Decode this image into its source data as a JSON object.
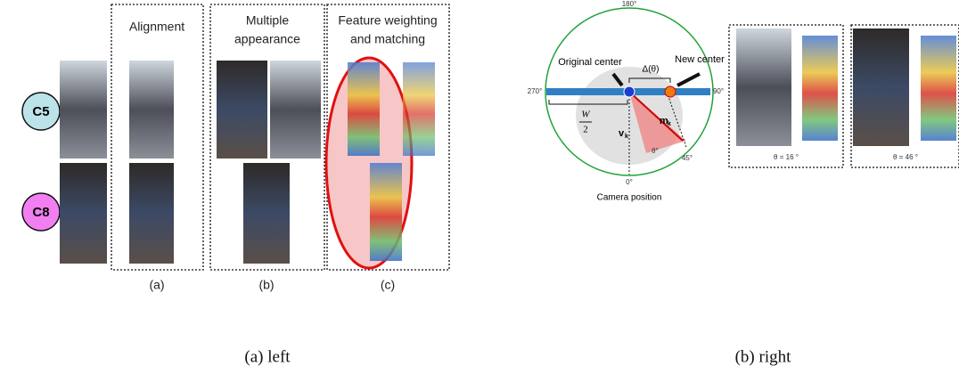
{
  "left": {
    "cameras": [
      "C5",
      "C8"
    ],
    "panels": [
      {
        "title": [
          "Alignment"
        ],
        "label": "(a)"
      },
      {
        "title": [
          "Multiple",
          "appearance"
        ],
        "label": "(b)"
      },
      {
        "title": [
          "Feature weighting",
          "and matching"
        ],
        "label": "(c)"
      }
    ]
  },
  "right": {
    "angles": {
      "top": "180°",
      "left": "270°",
      "right": "90°",
      "bottom": "0°",
      "diag": "45°"
    },
    "original_center": "Original center",
    "new_center": "New center",
    "delta": "Δ(θ)",
    "half_width": {
      "num": "W",
      "den": "2"
    },
    "v": {
      "base": "v",
      "sub": "k"
    },
    "m": {
      "base": "m",
      "sub": "k"
    },
    "theta": "θ°",
    "camera": "Camera position",
    "crops": [
      {
        "caption": "θ = 16 °"
      },
      {
        "caption": "θ = 46 °"
      }
    ]
  },
  "captions": [
    "(a) left",
    "(b) right"
  ]
}
